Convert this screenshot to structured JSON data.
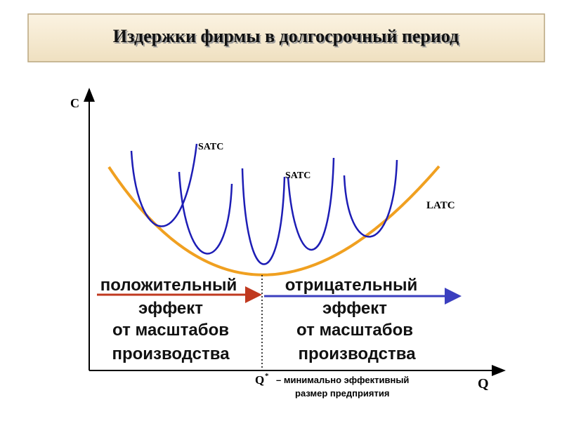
{
  "header": {
    "title": "Издержки фирмы в долгосрочный период"
  },
  "axes": {
    "y_label": "C",
    "x_label": "Q"
  },
  "curves": {
    "satc_1": "SATC",
    "satc_2": "SATC",
    "latc": "LATC"
  },
  "left_text": [
    "положительный",
    "эффект",
    "от масштабов",
    "производства"
  ],
  "right_text": [
    "отрицательный",
    "эффект",
    "от масштабов",
    "производства"
  ],
  "q_star": {
    "symbol": "Q",
    "sup": "*",
    "text": "– минимально эффективный",
    "line2": "размер предприятия"
  }
}
